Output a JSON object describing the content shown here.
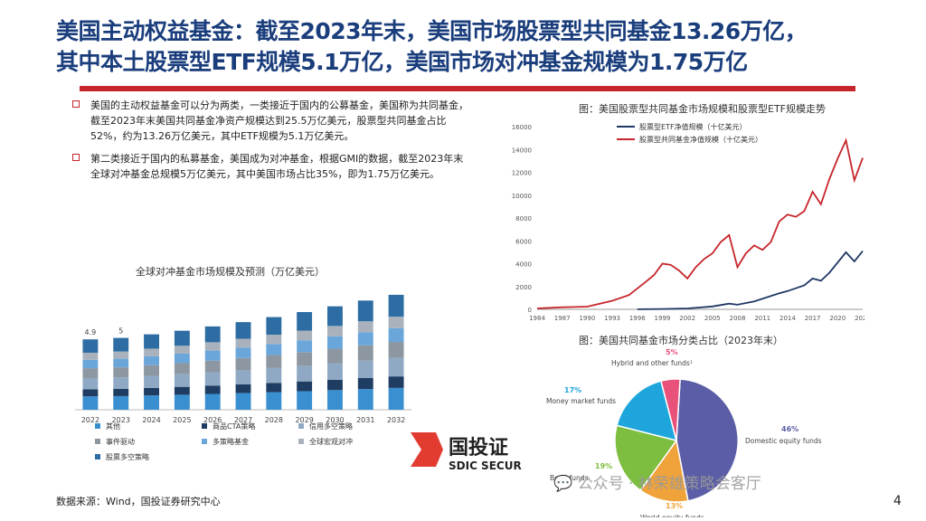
{
  "title": {
    "line1": "美国主动权益基金：截至2023年末，美国市场股票型共同基金13.26万亿，",
    "line2": "其中本土股票型ETF规模5.1万亿，美国市场对冲基金规模为1.75万亿"
  },
  "bullets": [
    "美国的主动权益基金可以分为两类，一类接近于国内的公募基金，美国称为共同基金，截至2023年末美国共同基金净资产规模达到25.5万亿美元，股票型共同基金占比52%，约为13.26万亿美元，其中ETF规模为5.1万亿美元。",
    "第二类接近于国内的私募基金，美国成为对冲基金，根据GMI的数据，截至2023年末全球对冲基金总规模5万亿美元，其中美国市场占比35%，即为1.75万亿美元。"
  ],
  "source": "数据来源：Wind，国投证券研究中心",
  "page_number": "4",
  "logo": {
    "cn": "国投证",
    "en": "SDIC SECUR"
  },
  "watermark": "公众号 · 林荣雄策略会客厅",
  "colors": {
    "title": "#1a3d7c",
    "accent": "#c6252b"
  },
  "chart_data": [
    {
      "type": "bar",
      "title": "全球对冲基金市场规模及预测（万亿美元）",
      "stacked": true,
      "categories": [
        "2022",
        "2023",
        "2024",
        "2025",
        "2026",
        "2027",
        "2028",
        "2029",
        "2030",
        "2031",
        "2032"
      ],
      "totals": [
        4.9,
        5.0,
        5.25,
        5.5,
        5.8,
        6.1,
        6.45,
        6.8,
        7.2,
        7.6,
        8.0
      ],
      "total_labels": [
        "4.9",
        "5",
        "",
        "",
        "",
        "",
        "",
        "",
        "",
        "",
        ""
      ],
      "ylim": [
        0,
        8.5
      ],
      "series": [
        {
          "name": "股票多空策略",
          "color": "#2e6da4",
          "share": 0.19
        },
        {
          "name": "全球宏观对冲",
          "color": "#a9b2bc",
          "share": 0.1
        },
        {
          "name": "多策略基金",
          "color": "#6aa6da",
          "share": 0.12
        },
        {
          "name": "事件驱动",
          "color": "#8d97a1",
          "share": 0.14
        },
        {
          "name": "信用多空策略",
          "color": "#8fa9c4",
          "share": 0.16
        },
        {
          "name": "商品CTA策略",
          "color": "#1f3c63",
          "share": 0.1
        },
        {
          "name": "其他",
          "color": "#3a8fd0",
          "share": 0.19
        }
      ],
      "legend_placement": "bottom"
    },
    {
      "type": "line",
      "title": "图：美国股票型共同基金市场规模和股票型ETF规模走势",
      "x_ticks": [
        1984,
        1987,
        1990,
        1993,
        1996,
        1999,
        2002,
        2005,
        2008,
        2011,
        2014,
        2017,
        2020,
        2023
      ],
      "ylim": [
        0,
        16000
      ],
      "y_ticks": [
        0,
        2000,
        4000,
        6000,
        8000,
        10000,
        12000,
        14000,
        16000
      ],
      "legend_placement": "top-left",
      "series": [
        {
          "name": "股票型ETF净值规模（十亿美元）",
          "color": "#1f3864",
          "x": [
            1996,
            1999,
            2002,
            2005,
            2007,
            2008,
            2010,
            2013,
            2014,
            2016,
            2017,
            2018,
            2019,
            2021,
            2022,
            2023
          ],
          "y": [
            10,
            30,
            80,
            250,
            500,
            400,
            700,
            1400,
            1600,
            2100,
            2700,
            2500,
            3200,
            5000,
            4200,
            5100
          ]
        },
        {
          "name": "股票型共同基金净值规模（十亿美元）",
          "color": "#c6252b",
          "x": [
            1984,
            1987,
            1990,
            1993,
            1995,
            1997,
            1998,
            1999,
            2000,
            2001,
            2002,
            2003,
            2004,
            2005,
            2006,
            2007,
            2008,
            2009,
            2010,
            2011,
            2012,
            2013,
            2014,
            2015,
            2016,
            2017,
            2018,
            2019,
            2020,
            2021,
            2022,
            2023
          ],
          "y": [
            80,
            180,
            240,
            750,
            1250,
            2400,
            3000,
            4000,
            3900,
            3400,
            2700,
            3700,
            4400,
            4900,
            5900,
            6500,
            3700,
            4900,
            5600,
            5200,
            5900,
            7700,
            8300,
            8100,
            8600,
            10300,
            9200,
            11400,
            13200,
            14800,
            11300,
            13260
          ]
        }
      ]
    },
    {
      "type": "pie",
      "title": "图：美国共同基金市场分类占比（2023年末）",
      "slices": [
        {
          "label": "Domestic equity funds",
          "value": 46,
          "pct": "46%",
          "color": "#5b5ea6"
        },
        {
          "label": "World equity funds",
          "value": 13,
          "pct": "13%",
          "color": "#f0a33a"
        },
        {
          "label": "Bond funds",
          "value": 19,
          "pct": "19%",
          "color": "#7dbd3f"
        },
        {
          "label": "Money market funds",
          "value": 17,
          "pct": "17%",
          "color": "#1ea6dc"
        },
        {
          "label": "Hybrid and other funds¹",
          "value": 5,
          "pct": "5%",
          "color": "#e8527a"
        }
      ]
    }
  ]
}
